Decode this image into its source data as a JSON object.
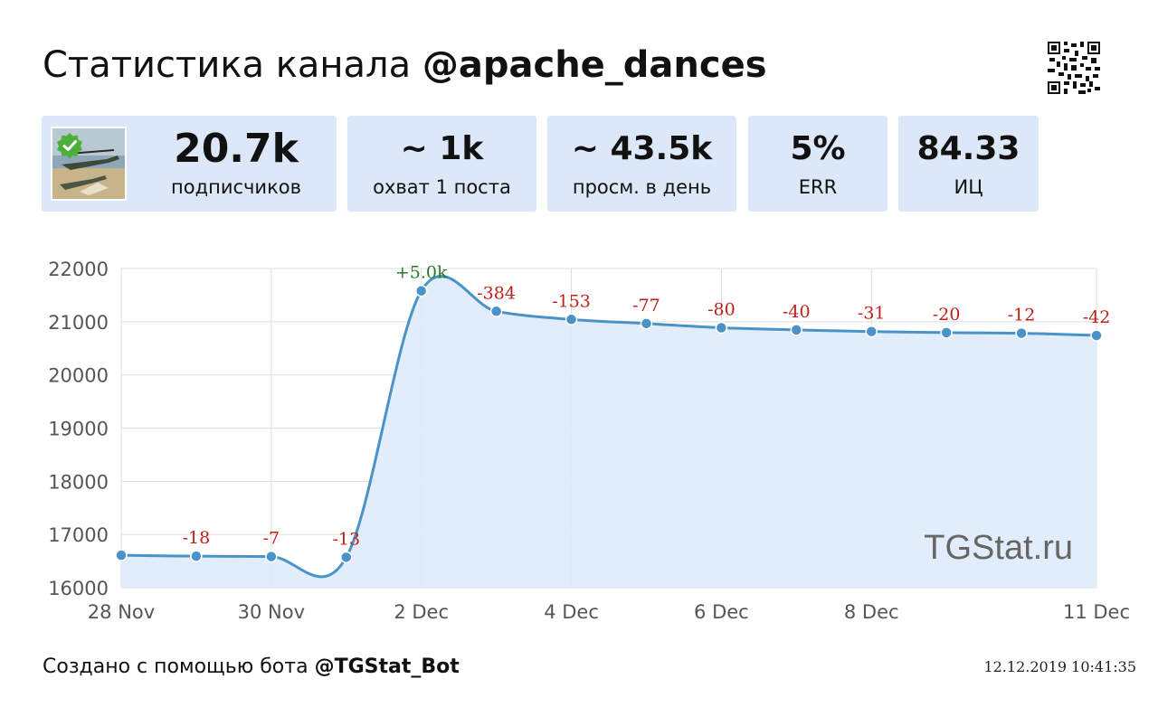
{
  "header": {
    "title_prefix": "Статистика канала",
    "channel": "@apache_dances"
  },
  "stats": {
    "subscribers": {
      "value": "20.7k",
      "label": "подписчиков"
    },
    "reach": {
      "value": "~ 1k",
      "label": "охват 1 поста"
    },
    "daily_views": {
      "value": "~ 43.5k",
      "label": "просм. в день"
    },
    "err": {
      "value": "5%",
      "label": "ERR"
    },
    "index": {
      "value": "84.33",
      "label": "ИЦ"
    }
  },
  "chart_data": {
    "type": "line",
    "area_fill": true,
    "x": [
      "28 Nov",
      "29 Nov",
      "30 Nov",
      "1 Dec",
      "2 Dec",
      "3 Dec",
      "4 Dec",
      "5 Dec",
      "6 Dec",
      "7 Dec",
      "8 Dec",
      "9 Dec",
      "10 Dec",
      "11 Dec"
    ],
    "x_tick_labels": [
      "28 Nov",
      "",
      "30 Nov",
      "",
      "2 Dec",
      "",
      "4 Dec",
      "",
      "6 Dec",
      "",
      "8 Dec",
      "",
      "",
      "11 Dec"
    ],
    "values": [
      16610,
      16592,
      16585,
      16572,
      21580,
      21196,
      21043,
      20966,
      20886,
      20846,
      20815,
      20795,
      20783,
      20741
    ],
    "point_labels": [
      "",
      "-18",
      "-7",
      "-13",
      "+5.0k",
      "-384",
      "-153",
      "-77",
      "-80",
      "-40",
      "-31",
      "-20",
      "-12",
      "-42"
    ],
    "ylim": [
      16000,
      22000
    ],
    "y_ticks": [
      "16000",
      "17000",
      "18000",
      "19000",
      "20000",
      "21000",
      "22000"
    ],
    "grid": true,
    "watermark": "TGStat.ru",
    "colors": {
      "line": "#4a93c8",
      "fill": "#deebf9",
      "negative": "#c0201a",
      "positive": "#2a7a2a",
      "grid": "#dddddd"
    }
  },
  "footer": {
    "prefix": "Создано с помощью бота",
    "bot": "@TGStat_Bot",
    "timestamp": "12.12.2019 10:41:35"
  },
  "icons": {
    "qr": "qr-code-icon",
    "verified": "check-badge-icon"
  }
}
